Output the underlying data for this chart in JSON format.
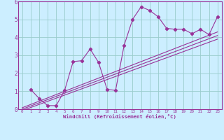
{
  "title": "",
  "xlabel": "Windchill (Refroidissement éolien,°C)",
  "bg_color": "#cceeff",
  "grid_color": "#99cccc",
  "line_color": "#993399",
  "border_color": "#993399",
  "xlim": [
    -0.5,
    23.5
  ],
  "ylim": [
    0,
    6
  ],
  "xticks": [
    0,
    1,
    2,
    3,
    4,
    5,
    6,
    7,
    8,
    9,
    10,
    11,
    12,
    13,
    14,
    15,
    16,
    17,
    18,
    19,
    20,
    21,
    22,
    23
  ],
  "yticks": [
    0,
    1,
    2,
    3,
    4,
    5,
    6
  ],
  "data_x": [
    1,
    2,
    3,
    4,
    5,
    6,
    7,
    8,
    9,
    10,
    11,
    12,
    13,
    14,
    15,
    16,
    17,
    18,
    19,
    20,
    21,
    22,
    23
  ],
  "data_y": [
    1.1,
    0.6,
    0.2,
    0.2,
    1.05,
    2.65,
    2.7,
    3.35,
    2.6,
    1.1,
    1.05,
    3.55,
    5.0,
    5.7,
    5.5,
    5.15,
    4.5,
    4.45,
    4.45,
    4.2,
    4.45,
    4.15,
    5.15
  ],
  "line1_y": [
    0.08,
    4.3
  ],
  "line2_y": [
    0.0,
    4.1
  ],
  "line3_y": [
    -0.08,
    3.9
  ]
}
